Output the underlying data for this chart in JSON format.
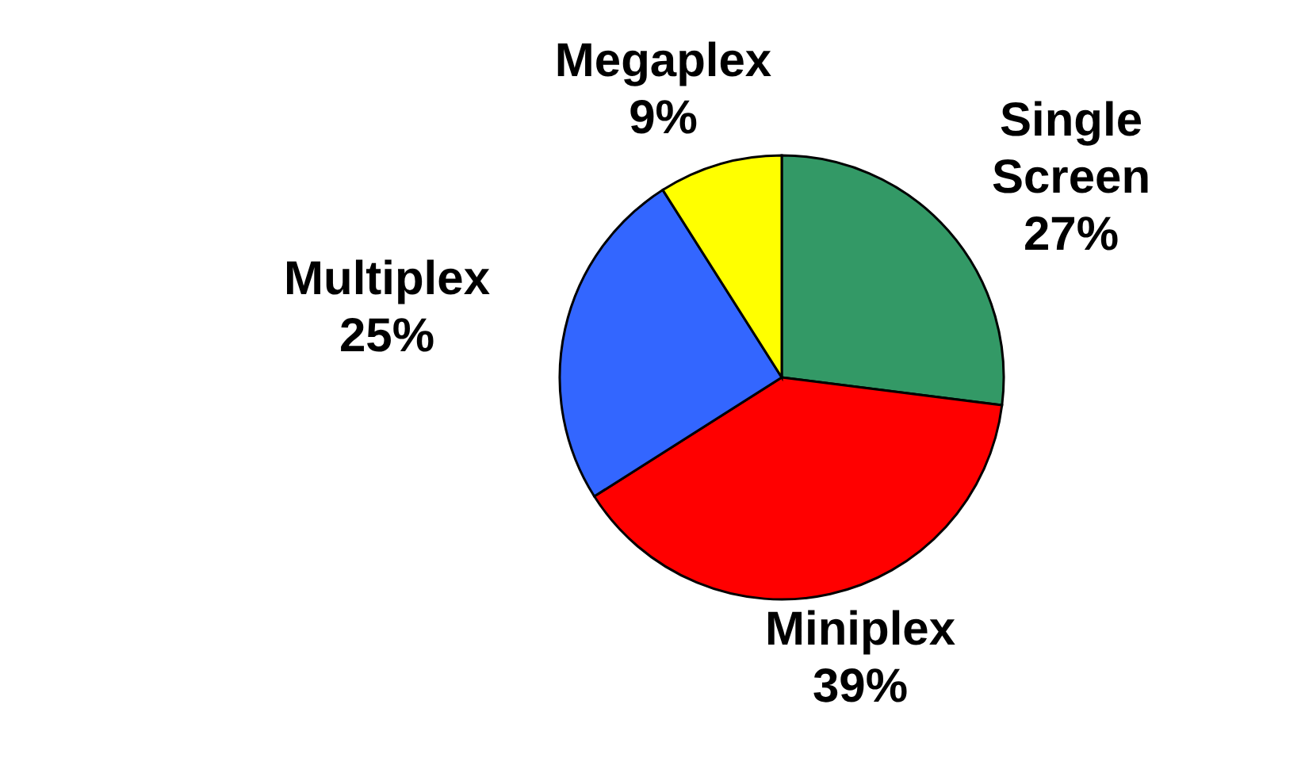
{
  "chart_data": {
    "type": "pie",
    "categories": [
      "Single Screen",
      "Miniplex",
      "Multiplex",
      "Megaplex"
    ],
    "values": [
      27,
      39,
      25,
      9
    ],
    "colors": [
      "#339966",
      "#ff0000",
      "#3366ff",
      "#ffff00"
    ],
    "value_labels": [
      "27%",
      "39%",
      "25%",
      "9%"
    ]
  }
}
